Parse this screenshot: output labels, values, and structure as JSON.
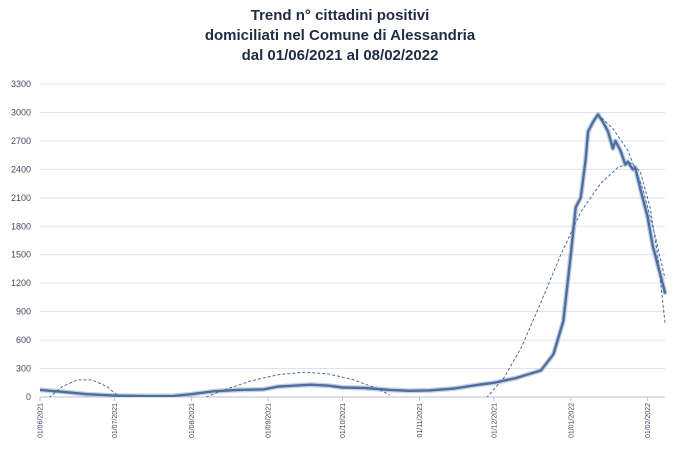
{
  "chart_data": {
    "type": "line",
    "title_lines": [
      "Trend n° cittadini positivi",
      "domiciliati nel Comune di Alessandria",
      "dal 01/06/2021 al 08/02/2022"
    ],
    "xlabel": "",
    "ylabel": "",
    "x_range": [
      "2021-06-01",
      "2022-02-08"
    ],
    "ylim": [
      0,
      3300
    ],
    "yticks": [
      0,
      300,
      600,
      900,
      1200,
      1500,
      1800,
      2100,
      2400,
      2700,
      3000,
      3300
    ],
    "ytick_labels": [
      "0",
      "300",
      "600",
      "900",
      "1200",
      "1500",
      "1800",
      "2100",
      "2400",
      "2700",
      "3000",
      "3300"
    ],
    "xticks": [
      "2021-06-01",
      "2021-07-01",
      "2021-08-01",
      "2021-09-01",
      "2021-10-01",
      "2021-11-01",
      "2021-12-01",
      "2022-01-01",
      "2022-02-01"
    ],
    "xtick_labels": [
      "01/06/2021",
      "01/07/2021",
      "01/08/2021",
      "01/09/2021",
      "01/10/2021",
      "01/11/2021",
      "01/12/2021",
      "01/01/2022",
      "01/02/2022"
    ],
    "grid": true,
    "legend": "none",
    "series": [
      {
        "style": "solid",
        "color": "#4d6e9e",
        "points": [
          [
            "2021-06-01",
            75
          ],
          [
            "2021-06-10",
            55
          ],
          [
            "2021-06-20",
            30
          ],
          [
            "2021-07-01",
            15
          ],
          [
            "2021-07-15",
            10
          ],
          [
            "2021-07-25",
            12
          ],
          [
            "2021-08-01",
            30
          ],
          [
            "2021-08-10",
            60
          ],
          [
            "2021-08-20",
            75
          ],
          [
            "2021-08-30",
            80
          ],
          [
            "2021-09-05",
            110
          ],
          [
            "2021-09-12",
            120
          ],
          [
            "2021-09-18",
            130
          ],
          [
            "2021-09-25",
            120
          ],
          [
            "2021-10-01",
            100
          ],
          [
            "2021-10-10",
            95
          ],
          [
            "2021-10-20",
            75
          ],
          [
            "2021-10-28",
            65
          ],
          [
            "2021-11-05",
            70
          ],
          [
            "2021-11-15",
            90
          ],
          [
            "2021-11-25",
            130
          ],
          [
            "2021-12-01",
            150
          ],
          [
            "2021-12-10",
            200
          ],
          [
            "2021-12-20",
            280
          ],
          [
            "2021-12-25",
            450
          ],
          [
            "2021-12-29",
            800
          ],
          [
            "2022-01-01",
            1500
          ],
          [
            "2022-01-03",
            2000
          ],
          [
            "2022-01-05",
            2100
          ],
          [
            "2022-01-07",
            2500
          ],
          [
            "2022-01-08",
            2800
          ],
          [
            "2022-01-10",
            2900
          ],
          [
            "2022-01-12",
            2980
          ],
          [
            "2022-01-14",
            2900
          ],
          [
            "2022-01-16",
            2800
          ],
          [
            "2022-01-18",
            2620
          ],
          [
            "2022-01-19",
            2700
          ],
          [
            "2022-01-21",
            2600
          ],
          [
            "2022-01-23",
            2450
          ],
          [
            "2022-01-24",
            2480
          ],
          [
            "2022-01-26",
            2400
          ],
          [
            "2022-01-27",
            2420
          ],
          [
            "2022-01-29",
            2200
          ],
          [
            "2022-02-01",
            1900
          ],
          [
            "2022-02-03",
            1600
          ],
          [
            "2022-02-05",
            1400
          ],
          [
            "2022-02-08",
            1100
          ]
        ]
      },
      {
        "style": "dashed",
        "color": "#4d6e9e",
        "points": [
          [
            "2021-06-03",
            -40
          ],
          [
            "2021-06-10",
            110
          ],
          [
            "2021-06-16",
            180
          ],
          [
            "2021-06-22",
            180
          ],
          [
            "2021-06-28",
            110
          ],
          [
            "2021-07-04",
            -20
          ]
        ]
      },
      {
        "style": "dashed",
        "color": "#4d6e9e",
        "points": [
          [
            "2021-08-05",
            -20
          ],
          [
            "2021-08-15",
            80
          ],
          [
            "2021-08-25",
            170
          ],
          [
            "2021-09-05",
            235
          ],
          [
            "2021-09-15",
            260
          ],
          [
            "2021-09-25",
            245
          ],
          [
            "2021-10-05",
            185
          ],
          [
            "2021-10-15",
            90
          ],
          [
            "2021-10-20",
            20
          ]
        ]
      },
      {
        "style": "dashed",
        "color": "#4d6e9e",
        "points": [
          [
            "2021-11-28",
            -10
          ],
          [
            "2021-12-05",
            200
          ],
          [
            "2021-12-12",
            520
          ],
          [
            "2021-12-20",
            1000
          ],
          [
            "2021-12-28",
            1500
          ],
          [
            "2022-01-05",
            1950
          ],
          [
            "2022-01-13",
            2250
          ],
          [
            "2022-01-20",
            2420
          ],
          [
            "2022-01-25",
            2470
          ],
          [
            "2022-01-29",
            2380
          ],
          [
            "2022-02-02",
            2000
          ],
          [
            "2022-02-05",
            1500
          ],
          [
            "2022-02-08",
            780
          ]
        ]
      },
      {
        "style": "dashed",
        "color": "#4d6e9e",
        "points": [
          [
            "2022-01-12",
            2980
          ],
          [
            "2022-01-18",
            2830
          ],
          [
            "2022-01-24",
            2600
          ],
          [
            "2022-01-30",
            2200
          ],
          [
            "2022-02-04",
            1700
          ],
          [
            "2022-02-08",
            1250
          ]
        ]
      }
    ]
  }
}
